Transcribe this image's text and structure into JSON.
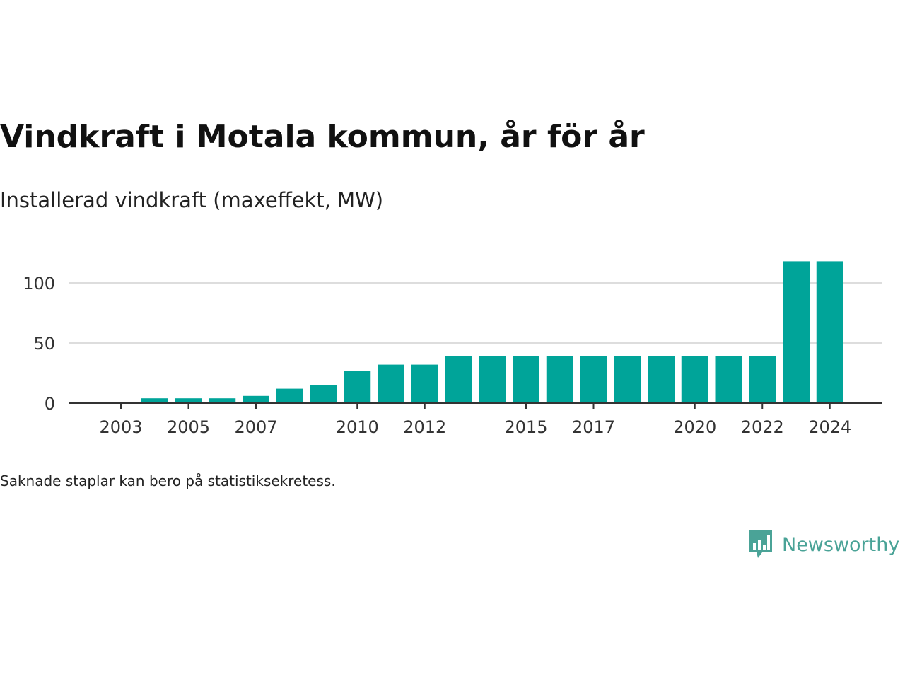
{
  "title": "Vindkraft i Motala kommun, år för år",
  "subtitle": "Installerad vindkraft (maxeffekt, MW)",
  "footnote": "Saknade staplar kan bero på statistiksekretess.",
  "brand": {
    "name": "Newsworthy",
    "icon": "newsworthy-bar-chart-icon",
    "color": "#4aa397"
  },
  "colors": {
    "bar": "#00a499",
    "grid": "#dddddd",
    "axis": "#333333"
  },
  "chart_data": {
    "type": "bar",
    "title": "Vindkraft i Motala kommun, år för år",
    "subtitle": "Installerad vindkraft (maxeffekt, MW)",
    "categories": [
      2003,
      2004,
      2005,
      2006,
      2007,
      2008,
      2009,
      2010,
      2011,
      2012,
      2013,
      2014,
      2015,
      2016,
      2017,
      2018,
      2019,
      2020,
      2021,
      2022,
      2023,
      2024
    ],
    "values": [
      null,
      4,
      4,
      4,
      6,
      12,
      15,
      27,
      32,
      32,
      39,
      39,
      39,
      39,
      39,
      39,
      39,
      39,
      39,
      39,
      118,
      118
    ],
    "x_tick_labels": [
      "2003",
      "2005",
      "2007",
      "2010",
      "2012",
      "2015",
      "2017",
      "2020",
      "2022",
      "2024"
    ],
    "y_ticks": [
      0,
      50,
      100
    ],
    "ylim": [
      0,
      120
    ],
    "grid": true,
    "legend": "none"
  }
}
